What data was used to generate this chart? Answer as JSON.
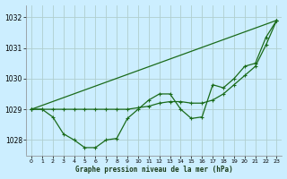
{
  "title": "Graphe pression niveau de la mer (hPa)",
  "bg_color": "#cceeff",
  "grid_color": "#b0cece",
  "line_color": "#1a6b1a",
  "xlim": [
    -0.5,
    23.5
  ],
  "ylim": [
    1027.5,
    1032.4
  ],
  "xticks": [
    0,
    1,
    2,
    3,
    4,
    5,
    6,
    7,
    8,
    9,
    10,
    11,
    12,
    13,
    14,
    15,
    16,
    17,
    18,
    19,
    20,
    21,
    22,
    23
  ],
  "yticks": [
    1028,
    1029,
    1030,
    1031,
    1032
  ],
  "series1_x": [
    0,
    1,
    2,
    3,
    4,
    5,
    6,
    7,
    8,
    9,
    10,
    11,
    12,
    13,
    14,
    15,
    16,
    17,
    18,
    19,
    20,
    21,
    22,
    23
  ],
  "series1_y": [
    1029.0,
    1029.0,
    1028.75,
    1028.2,
    1028.0,
    1027.75,
    1027.75,
    1028.0,
    1028.05,
    1028.7,
    1029.0,
    1029.3,
    1029.5,
    1029.5,
    1029.0,
    1028.7,
    1028.75,
    1029.8,
    1029.7,
    1030.0,
    1030.4,
    1030.5,
    1031.35,
    1031.9
  ],
  "series2_x": [
    0,
    1,
    2,
    3,
    4,
    5,
    6,
    7,
    8,
    9,
    10,
    11,
    12,
    13,
    14,
    15,
    16,
    17,
    18,
    19,
    20,
    21,
    22,
    23
  ],
  "series2_y": [
    1029.0,
    1029.0,
    1029.0,
    1029.0,
    1029.0,
    1029.0,
    1029.0,
    1029.0,
    1029.0,
    1029.0,
    1029.05,
    1029.1,
    1029.2,
    1029.25,
    1029.25,
    1029.2,
    1029.2,
    1029.3,
    1029.5,
    1029.8,
    1030.1,
    1030.4,
    1031.1,
    1031.9
  ],
  "series3_x": [
    0,
    23
  ],
  "series3_y": [
    1029.0,
    1031.9
  ],
  "figwidth": 3.2,
  "figheight": 2.0,
  "dpi": 100
}
